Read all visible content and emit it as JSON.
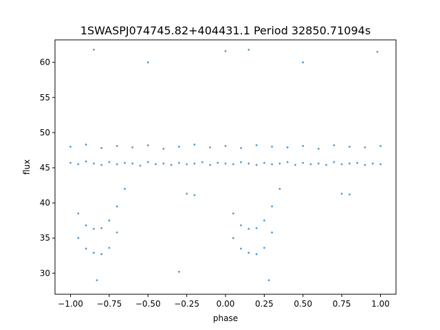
{
  "chart_data": {
    "type": "scatter",
    "title": "1SWASPJ074745.82+404431.1 Period 32850.71094s",
    "xlabel": "phase",
    "ylabel": "flux",
    "xlim": [
      -1.1,
      1.1
    ],
    "ylim": [
      27.0,
      63.2
    ],
    "xticks": [
      -1.0,
      -0.75,
      -0.5,
      -0.25,
      0.0,
      0.25,
      0.5,
      0.75,
      1.0
    ],
    "xtick_labels": [
      "−1.00",
      "−0.75",
      "−0.50",
      "−0.25",
      "0.00",
      "0.25",
      "0.50",
      "0.75",
      "1.00"
    ],
    "yticks": [
      30,
      35,
      40,
      45,
      50,
      55,
      60
    ],
    "ytick_labels": [
      "30",
      "35",
      "40",
      "45",
      "50",
      "55",
      "60"
    ],
    "grid": false,
    "legend": "none",
    "marker_color": "#1f77b4",
    "series": [
      {
        "values": [
          [
            -1.0,
            45.7
          ],
          [
            -0.95,
            45.5
          ],
          [
            -0.9,
            45.9
          ],
          [
            -0.85,
            45.6
          ],
          [
            -0.8,
            45.4
          ],
          [
            -0.75,
            45.8
          ],
          [
            -0.7,
            45.5
          ],
          [
            -0.65,
            45.7
          ],
          [
            -0.6,
            45.6
          ],
          [
            -0.55,
            45.3
          ],
          [
            -0.5,
            45.8
          ],
          [
            -0.45,
            45.5
          ],
          [
            -0.4,
            45.6
          ],
          [
            -0.35,
            45.4
          ],
          [
            -0.3,
            45.7
          ],
          [
            -0.25,
            45.5
          ],
          [
            -0.2,
            45.6
          ],
          [
            -0.15,
            45.8
          ],
          [
            -0.1,
            45.4
          ],
          [
            -0.05,
            45.7
          ],
          [
            0.0,
            45.6
          ],
          [
            0.05,
            45.5
          ],
          [
            0.1,
            45.8
          ],
          [
            0.15,
            45.6
          ],
          [
            0.2,
            45.4
          ],
          [
            0.25,
            45.7
          ],
          [
            0.3,
            45.5
          ],
          [
            0.35,
            45.6
          ],
          [
            0.4,
            45.8
          ],
          [
            0.45,
            45.4
          ],
          [
            0.5,
            45.7
          ],
          [
            0.55,
            45.5
          ],
          [
            0.6,
            45.6
          ],
          [
            0.65,
            45.4
          ],
          [
            0.7,
            45.8
          ],
          [
            0.75,
            45.5
          ],
          [
            0.8,
            45.6
          ],
          [
            0.85,
            45.7
          ],
          [
            0.9,
            45.4
          ],
          [
            0.95,
            45.6
          ],
          [
            1.0,
            45.5
          ],
          [
            -1.0,
            48.0
          ],
          [
            -0.9,
            48.3
          ],
          [
            -0.8,
            47.8
          ],
          [
            -0.7,
            48.1
          ],
          [
            -0.6,
            47.9
          ],
          [
            -0.5,
            48.2
          ],
          [
            -0.4,
            47.7
          ],
          [
            -0.3,
            48.0
          ],
          [
            -0.2,
            48.3
          ],
          [
            -0.1,
            47.9
          ],
          [
            0.0,
            48.1
          ],
          [
            0.1,
            47.8
          ],
          [
            0.2,
            48.2
          ],
          [
            0.3,
            48.0
          ],
          [
            0.4,
            47.9
          ],
          [
            0.5,
            48.1
          ],
          [
            0.6,
            47.7
          ],
          [
            0.7,
            48.2
          ],
          [
            0.8,
            48.0
          ],
          [
            0.9,
            47.9
          ],
          [
            1.0,
            48.1
          ],
          [
            -0.95,
            38.5
          ],
          [
            -0.9,
            36.8
          ],
          [
            -0.85,
            36.3
          ],
          [
            -0.8,
            36.4
          ],
          [
            -0.75,
            37.5
          ],
          [
            -0.7,
            39.5
          ],
          [
            -0.65,
            42.0
          ],
          [
            -0.95,
            35.0
          ],
          [
            -0.9,
            33.5
          ],
          [
            -0.85,
            32.9
          ],
          [
            -0.8,
            32.7
          ],
          [
            -0.75,
            33.6
          ],
          [
            -0.7,
            35.8
          ],
          [
            0.05,
            38.5
          ],
          [
            0.1,
            36.8
          ],
          [
            0.15,
            36.3
          ],
          [
            0.2,
            36.4
          ],
          [
            0.25,
            37.5
          ],
          [
            0.3,
            39.5
          ],
          [
            0.35,
            42.0
          ],
          [
            0.05,
            35.0
          ],
          [
            0.1,
            33.5
          ],
          [
            0.15,
            32.9
          ],
          [
            0.2,
            32.7
          ],
          [
            0.25,
            33.6
          ],
          [
            0.3,
            35.8
          ],
          [
            -0.25,
            41.3
          ],
          [
            -0.2,
            41.1
          ],
          [
            0.75,
            41.3
          ],
          [
            0.8,
            41.2
          ],
          [
            -0.85,
            61.8
          ],
          [
            -0.5,
            60.0
          ],
          [
            0.0,
            61.6
          ],
          [
            0.15,
            61.8
          ],
          [
            0.5,
            60.0
          ],
          [
            0.98,
            61.5
          ],
          [
            -0.83,
            29.0
          ],
          [
            0.28,
            29.0
          ],
          [
            -0.3,
            30.2
          ]
        ]
      }
    ]
  }
}
